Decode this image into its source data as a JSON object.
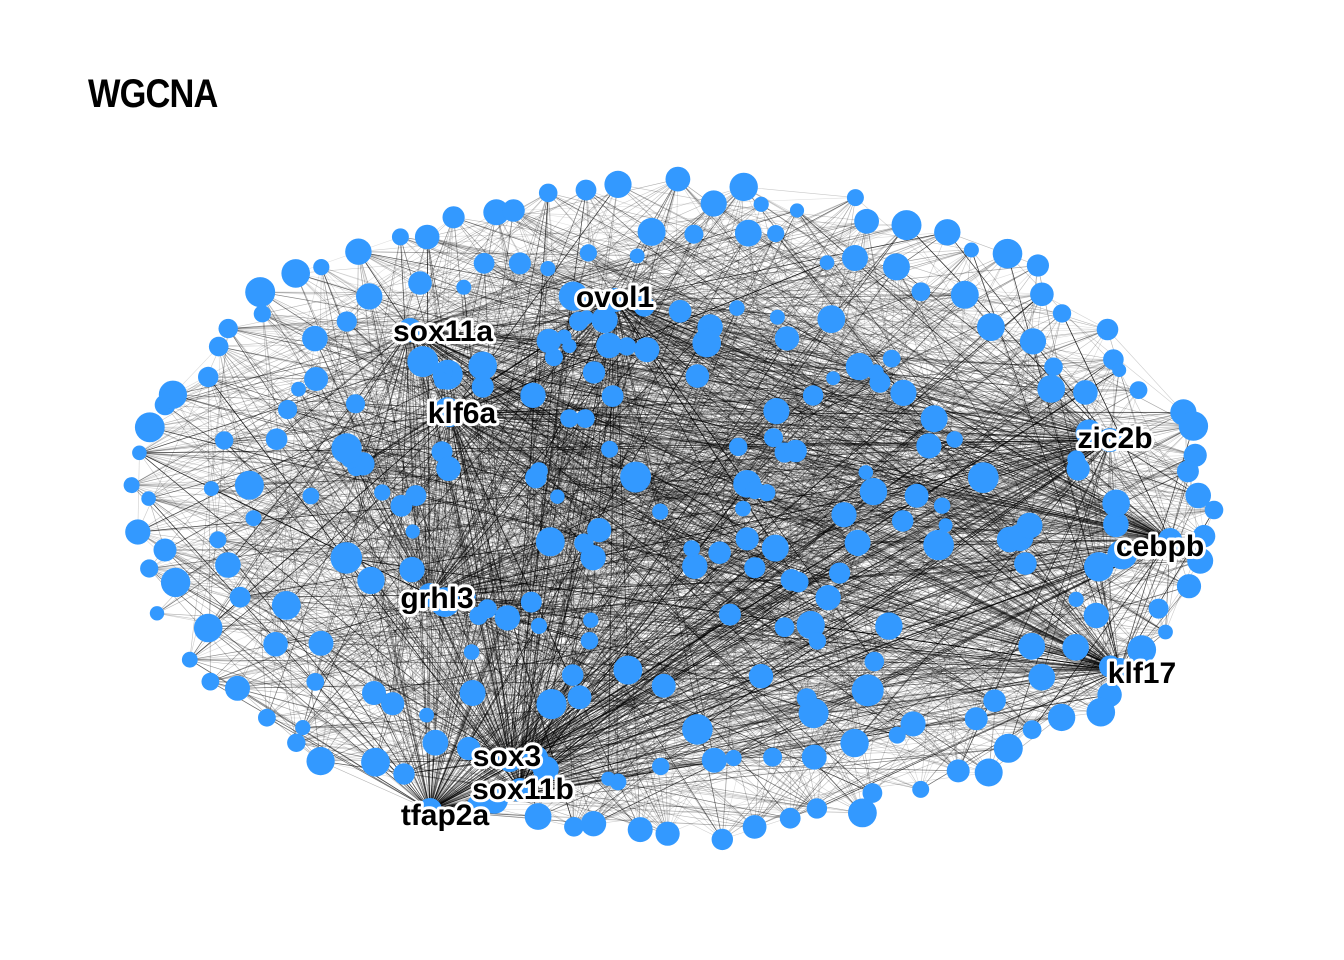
{
  "title": "WGCNA",
  "node_color": "#3399ff",
  "edge_color": "#000000",
  "hub_genes": [
    "ovol1",
    "sox11a",
    "klf6a",
    "zic2b",
    "cebpb",
    "grhl3",
    "klf17",
    "sox3",
    "sox11b",
    "tfap2a"
  ]
}
